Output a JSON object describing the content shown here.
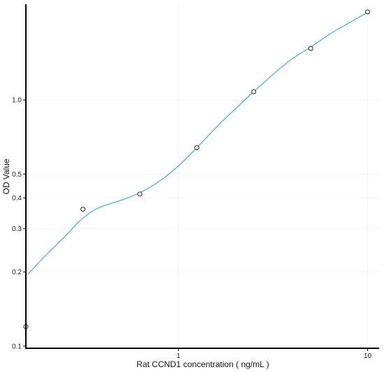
{
  "chart_data": {
    "type": "scatter",
    "title": "",
    "xlabel": "Rat CCND1 concentration ( ng/mL )",
    "ylabel": "OD Value",
    "x_scale": "log",
    "y_scale": "log",
    "xlim": [
      0.156,
      11.5
    ],
    "ylim": [
      0.098,
      2.45
    ],
    "x_ticks": [
      {
        "value": 1,
        "label": "1"
      },
      {
        "value": 10,
        "label": "10"
      }
    ],
    "y_ticks": [
      {
        "value": 0.1,
        "label": "0.1"
      },
      {
        "value": 0.2,
        "label": "0.2"
      },
      {
        "value": 0.3,
        "label": "0.3"
      },
      {
        "value": 0.4,
        "label": "0.4"
      },
      {
        "value": 0.5,
        "label": "0.5"
      },
      {
        "value": 1.0,
        "label": "1.0"
      }
    ],
    "grid": true,
    "legend": "none",
    "colors": {
      "curve": "#4aa6d6",
      "points": "#222222",
      "axis": "#000000",
      "grid": "#f2f2f2"
    },
    "series": [
      {
        "kind": "points",
        "x": [
          0.156,
          0.3125,
          0.625,
          1.25,
          2.5,
          5,
          10
        ],
        "y": [
          0.12,
          0.36,
          0.415,
          0.64,
          1.08,
          1.62,
          2.28
        ]
      },
      {
        "kind": "fitted_curve",
        "x": [
          0.16,
          0.2,
          0.25,
          0.3,
          0.35,
          0.4,
          0.5,
          0.625,
          0.8,
          1.0,
          1.25,
          1.6,
          2.0,
          2.5,
          3.2,
          4.0,
          5.0,
          6.3,
          8.0,
          10.0
        ],
        "y": [
          0.196,
          0.235,
          0.278,
          0.322,
          0.353,
          0.371,
          0.392,
          0.42,
          0.47,
          0.54,
          0.64,
          0.78,
          0.92,
          1.08,
          1.28,
          1.47,
          1.64,
          1.85,
          2.06,
          2.27
        ]
      }
    ]
  }
}
